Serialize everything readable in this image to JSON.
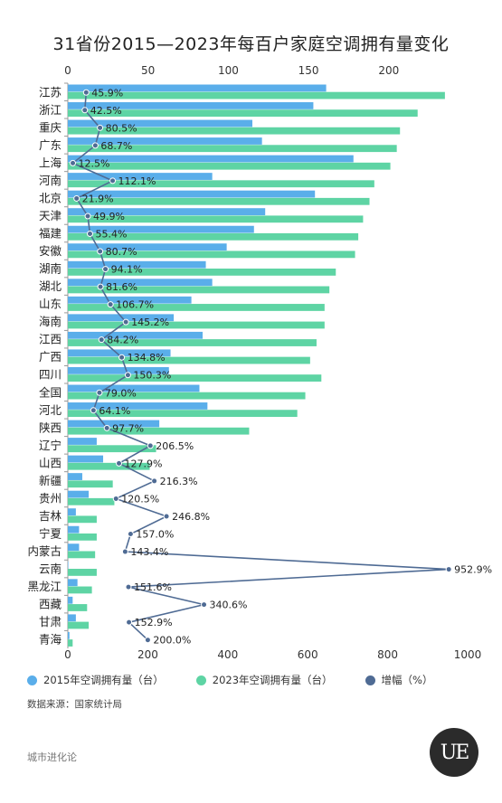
{
  "title": "31省份2015—2023年每百户家庭空调拥有量变化",
  "source": "数据来源：国家统计局",
  "brand": "城市进化论",
  "logo_text": "UE",
  "colors": {
    "bar2015": "#5aaeea",
    "bar2023": "#5ed4a4",
    "line": "#4f6b94",
    "axis_text": "#333333"
  },
  "chart_data": {
    "type": "bar",
    "title": "31省份2015—2023年每百户家庭空调拥有量变化",
    "orientation": "horizontal",
    "categories": [
      "江苏",
      "浙江",
      "重庆",
      "广东",
      "上海",
      "河南",
      "北京",
      "天津",
      "福建",
      "安徽",
      "湖南",
      "湖北",
      "山东",
      "海南",
      "江西",
      "广西",
      "四川",
      "全国",
      "河北",
      "陕西",
      "辽宁",
      "山西",
      "新疆",
      "贵州",
      "吉林",
      "宁夏",
      "内蒙古",
      "云南",
      "黑龙江",
      "西藏",
      "甘肃",
      "青海"
    ],
    "top_axis": {
      "range": [
        0,
        250
      ],
      "ticks": [
        0,
        50,
        100,
        150,
        200
      ]
    },
    "bottom_axis": {
      "range": [
        0,
        1000
      ],
      "ticks": [
        0,
        200,
        400,
        600,
        800,
        1000
      ]
    },
    "series": [
      {
        "name": "2015年空调拥有量（台）",
        "type": "bar",
        "axis": "top",
        "values": [
          161,
          153,
          115,
          121,
          178,
          90,
          154,
          123,
          116,
          99,
          86,
          90,
          77,
          66,
          84,
          64,
          63,
          82,
          87,
          57,
          18,
          22,
          9,
          13,
          5,
          7,
          7,
          0.3,
          6,
          3,
          5,
          1
        ]
      },
      {
        "name": "2023年空调拥有量（台）",
        "type": "bar",
        "axis": "top",
        "values": [
          235,
          218,
          207,
          205,
          201,
          191,
          188,
          184,
          181,
          179,
          167,
          163,
          160,
          160,
          155,
          151,
          158,
          148,
          143,
          113,
          55,
          51,
          28,
          29,
          18,
          18,
          17,
          18,
          15,
          12,
          13,
          3
        ]
      },
      {
        "name": "增幅（%）",
        "type": "line",
        "axis": "bottom",
        "values": [
          45.9,
          42.5,
          80.5,
          68.7,
          12.5,
          112.1,
          21.9,
          49.9,
          55.4,
          80.7,
          94.1,
          81.6,
          106.7,
          145.2,
          84.2,
          134.8,
          150.3,
          79.0,
          64.1,
          97.7,
          206.5,
          127.9,
          216.3,
          120.5,
          246.8,
          157.0,
          143.4,
          952.9,
          151.6,
          340.6,
          152.9,
          200.0
        ],
        "labels": [
          "45.9%",
          "42.5%",
          "80.5%",
          "68.7%",
          "12.5%",
          "112.1%",
          "21.9%",
          "49.9%",
          "55.4%",
          "80.7%",
          "94.1%",
          "81.6%",
          "106.7%",
          "145.2%",
          "84.2%",
          "134.8%",
          "150.3%",
          "79.0%",
          "64.1%",
          "97.7%",
          "206.5%",
          "127.9%",
          "216.3%",
          "120.5%",
          "246.8%",
          "157.0%",
          "143.4%",
          "952.9%",
          "151.6%",
          "340.6%",
          "152.9%",
          "200.0%"
        ]
      }
    ],
    "grid": false,
    "legend_position": "bottom"
  }
}
